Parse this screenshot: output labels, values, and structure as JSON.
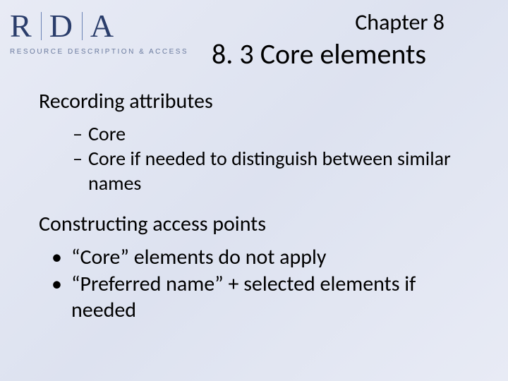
{
  "logo": {
    "l1": "R",
    "l2": "D",
    "l3": "A",
    "tagline": "RESOURCE DESCRIPTION & ACCESS",
    "color": "#2a3d6b",
    "tagline_color": "#6a7a9e"
  },
  "chapter": "Chapter 8",
  "title": "8. 3 Core elements",
  "section1": {
    "heading": "Recording attributes",
    "items": [
      "Core",
      "Core if needed to distinguish between similar names"
    ]
  },
  "section2": {
    "heading": "Constructing access points",
    "items": [
      "“Core” elements do not apply",
      "“Preferred name” + selected elements if needed"
    ]
  },
  "style": {
    "background_gradient": [
      "#e8ebf5",
      "#dde2f0",
      "#e8ebf5"
    ],
    "body_font": "Calibri",
    "chapter_fontsize": 32,
    "title_fontsize": 40,
    "heading_fontsize": 30,
    "item_fontsize": 28,
    "bullet_fontsize": 30,
    "text_color": "#000000"
  }
}
